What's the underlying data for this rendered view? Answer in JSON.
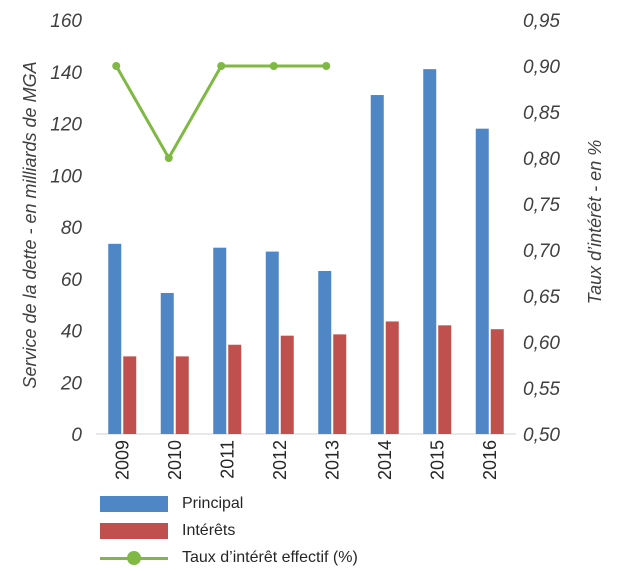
{
  "chart_data": {
    "type": "bar",
    "categories": [
      "2009",
      "2010",
      "2011",
      "2012",
      "2013",
      "2014",
      "2015",
      "2016"
    ],
    "series": [
      {
        "name": "Principal",
        "type": "bar",
        "axis": "left",
        "color": "#4f86c6",
        "values": [
          73.5,
          54.5,
          72,
          70.5,
          63,
          131,
          141,
          118
        ]
      },
      {
        "name": "Intérêts",
        "type": "bar",
        "axis": "left",
        "color": "#c0504d",
        "values": [
          30,
          30,
          34.5,
          38,
          38.5,
          43.5,
          42,
          40.5
        ]
      },
      {
        "name": "Taux d’intérêt effectif (%)",
        "type": "line",
        "axis": "right",
        "color": "#7fb843",
        "values": [
          0.9,
          0.8,
          0.9,
          0.9,
          0.9,
          null,
          null,
          null
        ]
      }
    ],
    "ylabel_left": "Service de la dette - en milliards de MGA",
    "ylabel_right": "Taux d’intérêt - en %",
    "ylim_left": [
      0,
      160
    ],
    "ylim_right": [
      0.5,
      0.95
    ],
    "yticks_left": [
      "0",
      "20",
      "40",
      "60",
      "80",
      "100",
      "120",
      "140",
      "160"
    ],
    "yticks_right": [
      "0,50",
      "0,55",
      "0,60",
      "0,65",
      "0,70",
      "0,75",
      "0,80",
      "0,85",
      "0,90",
      "0,95"
    ],
    "grid": false,
    "legend_position": "bottom"
  }
}
